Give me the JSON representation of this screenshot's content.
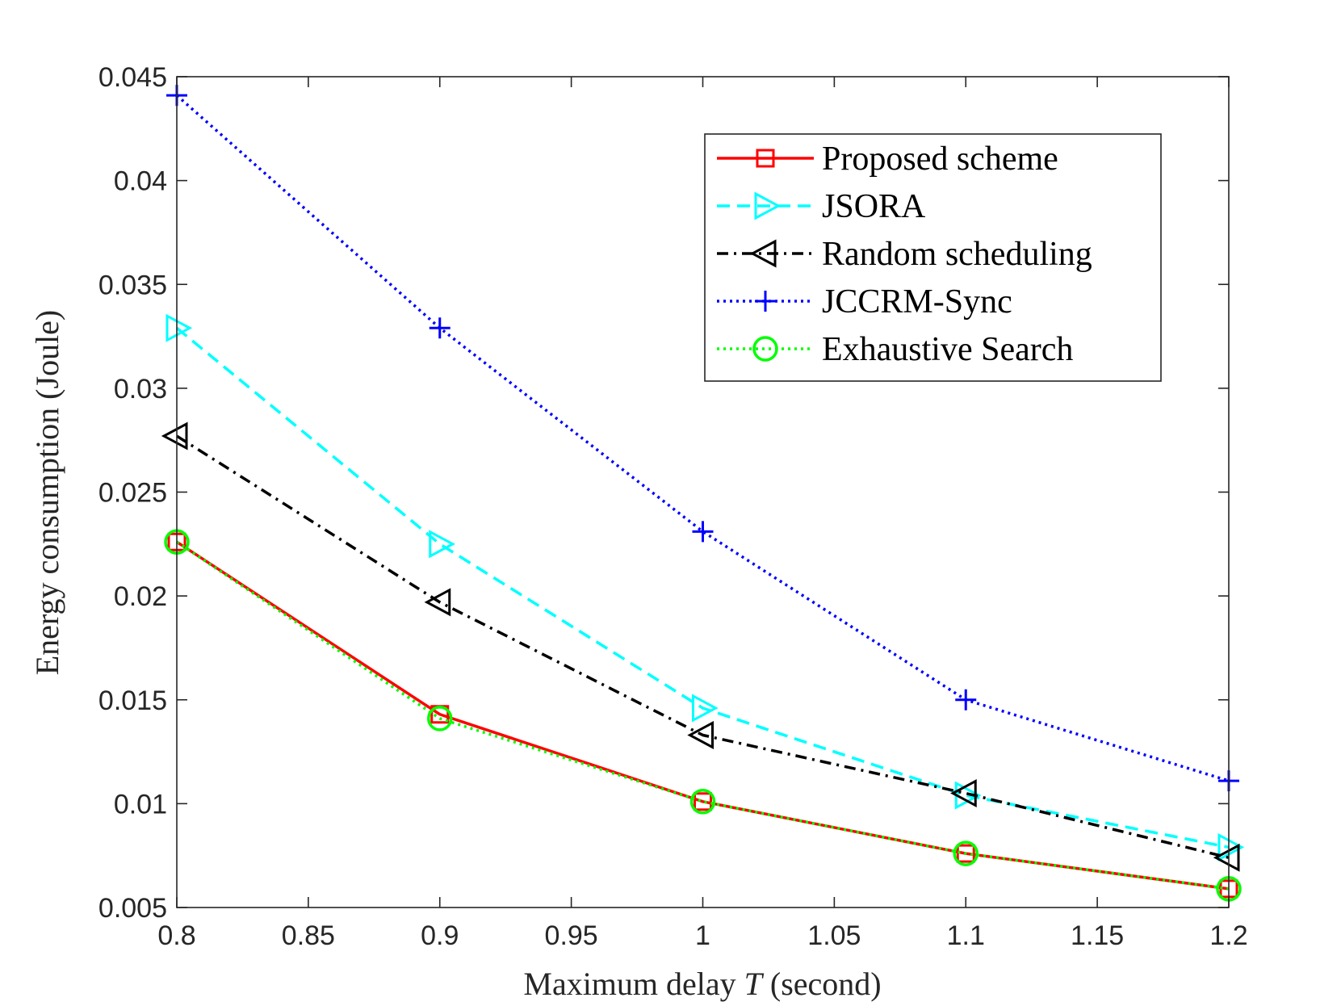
{
  "chart_data": {
    "type": "line",
    "title": "",
    "xlabel": "Maximum delay T (second)",
    "xlabel_prefix": "Maximum delay ",
    "xlabel_var": "T",
    "xlabel_suffix": " (second)",
    "ylabel": "Energy consumption (Joule)",
    "xlim": [
      0.8,
      1.2
    ],
    "ylim": [
      0.005,
      0.045
    ],
    "xticks": [
      0.8,
      0.85,
      0.9,
      0.95,
      1,
      1.05,
      1.1,
      1.15,
      1.2
    ],
    "xtick_labels": [
      "0.8",
      "0.85",
      "0.9",
      "0.95",
      "1",
      "1.05",
      "1.1",
      "1.15",
      "1.2"
    ],
    "yticks": [
      0.005,
      0.01,
      0.015,
      0.02,
      0.025,
      0.03,
      0.035,
      0.04,
      0.045
    ],
    "ytick_labels": [
      "0.005",
      "0.01",
      "0.015",
      "0.02",
      "0.025",
      "0.03",
      "0.035",
      "0.04",
      "0.045"
    ],
    "grid": false,
    "legend_position": "top-right",
    "x": [
      0.8,
      0.9,
      1.0,
      1.1,
      1.2
    ],
    "series": [
      {
        "name": "Proposed scheme",
        "values": [
          0.0226,
          0.0143,
          0.0101,
          0.0076,
          0.0059
        ],
        "color": "#ff0000",
        "dash": "solid",
        "marker": "square"
      },
      {
        "name": "JSORA",
        "values": [
          0.0329,
          0.0225,
          0.0146,
          0.0104,
          0.0079
        ],
        "color": "#00ffff",
        "dash": "dashed",
        "marker": "triangle-right"
      },
      {
        "name": "Random scheduling",
        "values": [
          0.0277,
          0.0197,
          0.0133,
          0.0105,
          0.0074
        ],
        "color": "#000000",
        "dash": "dashdot",
        "marker": "triangle-left"
      },
      {
        "name": "JCCRM-Sync",
        "values": [
          0.0441,
          0.0329,
          0.0231,
          0.015,
          0.0111
        ],
        "color": "#0000ff",
        "dash": "dotted",
        "marker": "plus"
      },
      {
        "name": "Exhaustive Search",
        "values": [
          0.0226,
          0.0141,
          0.0101,
          0.0076,
          0.0059
        ],
        "color": "#00ff00",
        "dash": "dotted",
        "marker": "circle"
      }
    ]
  }
}
